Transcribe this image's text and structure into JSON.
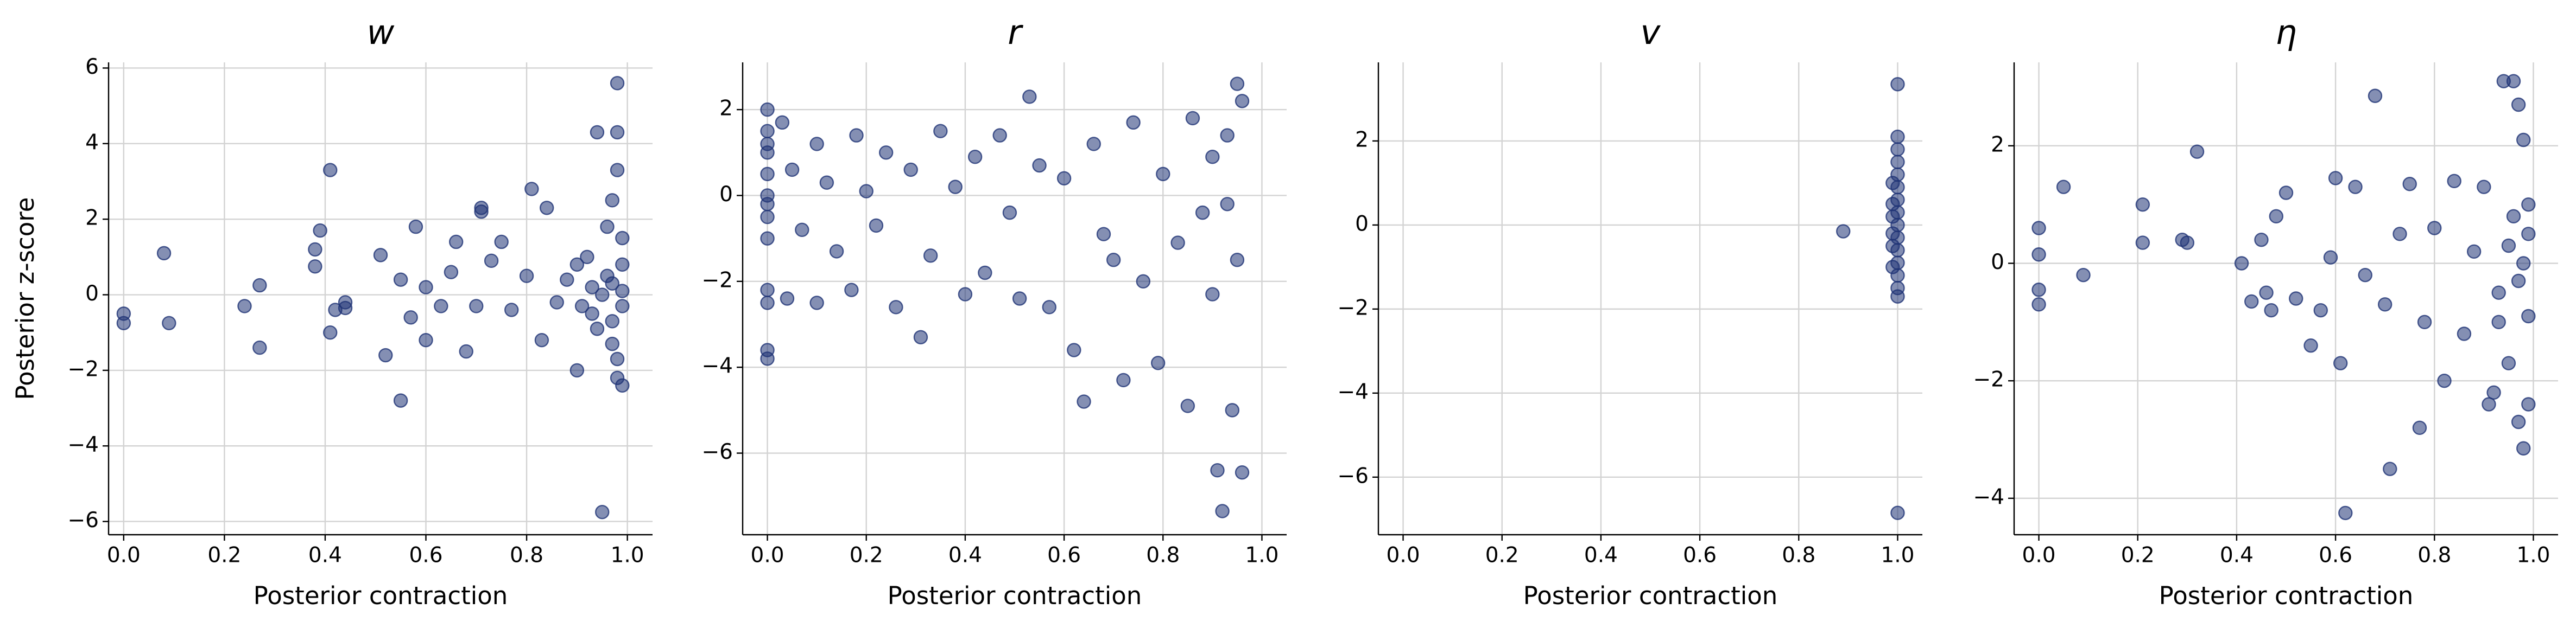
{
  "chart_data": [
    {
      "type": "scatter",
      "title": "w",
      "x_label": "Posterior contraction",
      "y_label": "Posterior z-score",
      "color": "#1f3375",
      "grid": true,
      "xlim": [
        -0.03,
        1.05
      ],
      "ylim": [
        -6.35,
        6.15
      ],
      "xticks": [
        {
          "value": 0,
          "label": "0.0"
        },
        0.2,
        0.4,
        0.6,
        0.8,
        {
          "value": 1,
          "label": "1.0"
        }
      ],
      "yticks": [
        {
          "value": -6,
          "label": "−6"
        },
        {
          "value": -4,
          "label": "−4"
        },
        {
          "value": -2,
          "label": "−2"
        },
        0,
        2,
        4,
        6
      ],
      "x": [
        0,
        0,
        0.08,
        0.09,
        0.24,
        0.27,
        0.27,
        0.38,
        0.38,
        0.39,
        0.41,
        0.41,
        0.42,
        0.44,
        0.44,
        0.51,
        0.52,
        0.55,
        0.55,
        0.57,
        0.58,
        0.6,
        0.6,
        0.63,
        0.65,
        0.66,
        0.68,
        0.7,
        0.71,
        0.71,
        0.73,
        0.75,
        0.77,
        0.8,
        0.81,
        0.83,
        0.84,
        0.86,
        0.88,
        0.9,
        0.9,
        0.92,
        0.93,
        0.94,
        0.94,
        0.95,
        0.96,
        0.97,
        0.97,
        0.98,
        0.98,
        0.98,
        0.98,
        0.99,
        0.99,
        0.99,
        0.99,
        0.97,
        0.96,
        0.95,
        0.93,
        0.91,
        0.99,
        0.98,
        0.97
      ],
      "values": [
        -0.5,
        -0.75,
        1.1,
        -0.75,
        -0.3,
        0.25,
        -1.4,
        0.75,
        1.2,
        1.7,
        3.3,
        -1.0,
        -0.4,
        -0.2,
        -0.35,
        1.05,
        -1.6,
        -2.8,
        0.4,
        -0.6,
        1.8,
        0.2,
        -1.2,
        -0.3,
        0.6,
        1.4,
        -1.5,
        -0.3,
        2.2,
        2.3,
        0.9,
        1.4,
        -0.4,
        0.5,
        2.8,
        -1.2,
        2.3,
        -0.2,
        0.4,
        -2.0,
        0.8,
        1.0,
        -0.5,
        -0.9,
        4.3,
        -5.75,
        1.8,
        -1.3,
        0.3,
        4.3,
        5.6,
        3.3,
        -2.2,
        -2.4,
        -0.3,
        0.8,
        0.1,
        -0.7,
        0.5,
        0.0,
        0.2,
        -0.3,
        1.5,
        -1.7,
        2.5
      ]
    },
    {
      "type": "scatter",
      "title": "r",
      "x_label": "Posterior contraction",
      "color": "#1f3375",
      "grid": true,
      "xlim": [
        -0.05,
        1.05
      ],
      "ylim": [
        -7.9,
        3.1
      ],
      "xticks": [
        {
          "value": 0,
          "label": "0.0"
        },
        0.2,
        0.4,
        0.6,
        0.8,
        {
          "value": 1,
          "label": "1.0"
        }
      ],
      "yticks": [
        {
          "value": -6,
          "label": "−6"
        },
        {
          "value": -4,
          "label": "−4"
        },
        {
          "value": -2,
          "label": "−2"
        },
        0,
        2
      ],
      "x": [
        0,
        0,
        0,
        0,
        0,
        0,
        0,
        0,
        0,
        0,
        0,
        0,
        0,
        0.03,
        0.04,
        0.05,
        0.07,
        0.1,
        0.1,
        0.12,
        0.14,
        0.17,
        0.18,
        0.2,
        0.22,
        0.24,
        0.26,
        0.29,
        0.31,
        0.33,
        0.35,
        0.38,
        0.4,
        0.42,
        0.44,
        0.47,
        0.49,
        0.51,
        0.53,
        0.55,
        0.57,
        0.6,
        0.62,
        0.64,
        0.66,
        0.68,
        0.7,
        0.72,
        0.74,
        0.76,
        0.79,
        0.8,
        0.83,
        0.85,
        0.86,
        0.88,
        0.9,
        0.91,
        0.92,
        0.93,
        0.94,
        0.95,
        0.95,
        0.96,
        0.96,
        0.93,
        0.9
      ],
      "values": [
        2.0,
        1.5,
        1.0,
        0.5,
        0.0,
        -0.5,
        -1.0,
        -2.2,
        -2.5,
        -3.6,
        -3.8,
        1.2,
        -0.2,
        1.7,
        -2.4,
        0.6,
        -0.8,
        1.2,
        -2.5,
        0.3,
        -1.3,
        -2.2,
        1.4,
        0.1,
        -0.7,
        1.0,
        -2.6,
        0.6,
        -3.3,
        -1.4,
        1.5,
        0.2,
        -2.3,
        0.9,
        -1.8,
        1.4,
        -0.4,
        -2.4,
        2.3,
        0.7,
        -2.6,
        0.4,
        -3.6,
        -4.8,
        1.2,
        -0.9,
        -1.5,
        -4.3,
        1.7,
        -2.0,
        -3.9,
        0.5,
        -1.1,
        -4.9,
        1.8,
        -0.4,
        -2.3,
        -6.4,
        -7.35,
        1.4,
        -5.0,
        2.6,
        -1.5,
        -6.45,
        2.2,
        -0.2,
        0.9
      ]
    },
    {
      "type": "scatter",
      "title": "v",
      "x_label": "Posterior contraction",
      "color": "#1f3375",
      "grid": true,
      "xlim": [
        -0.05,
        1.05
      ],
      "ylim": [
        -7.37,
        3.87
      ],
      "xticks": [
        {
          "value": 0,
          "label": "0.0"
        },
        0.2,
        0.4,
        0.6,
        0.8,
        {
          "value": 1,
          "label": "1.0"
        }
      ],
      "yticks": [
        {
          "value": -6,
          "label": "−6"
        },
        {
          "value": -4,
          "label": "−4"
        },
        {
          "value": -2,
          "label": "−2"
        },
        0,
        2
      ],
      "x": [
        0.89,
        1,
        1,
        1,
        1,
        1,
        1,
        1,
        1,
        1,
        1,
        1,
        1,
        1,
        1,
        1,
        0.99,
        0.99,
        0.99,
        0.99,
        0.99,
        0.99,
        1
      ],
      "values": [
        -0.15,
        3.35,
        2.1,
        1.8,
        1.5,
        1.2,
        0.9,
        0.6,
        0.3,
        0.0,
        -0.3,
        -0.6,
        -0.9,
        -1.2,
        -1.5,
        -1.7,
        0.5,
        -0.5,
        1.0,
        -1.0,
        -0.2,
        0.2,
        -6.85
      ]
    },
    {
      "type": "scatter",
      "title": "η",
      "x_label": "Posterior contraction",
      "color": "#1f3375",
      "grid": true,
      "xlim": [
        -0.05,
        1.05
      ],
      "ylim": [
        -4.62,
        3.42
      ],
      "xticks": [
        {
          "value": 0,
          "label": "0.0"
        },
        0.2,
        0.4,
        0.6,
        0.8,
        {
          "value": 1,
          "label": "1.0"
        }
      ],
      "yticks": [
        {
          "value": -4,
          "label": "−4"
        },
        {
          "value": -2,
          "label": "−2"
        },
        0,
        2
      ],
      "x": [
        0,
        0,
        0,
        0,
        0.05,
        0.09,
        0.21,
        0.21,
        0.29,
        0.3,
        0.32,
        0.41,
        0.43,
        0.45,
        0.46,
        0.47,
        0.48,
        0.5,
        0.52,
        0.55,
        0.57,
        0.59,
        0.6,
        0.61,
        0.62,
        0.64,
        0.66,
        0.68,
        0.7,
        0.71,
        0.73,
        0.75,
        0.77,
        0.78,
        0.8,
        0.82,
        0.84,
        0.86,
        0.88,
        0.9,
        0.91,
        0.92,
        0.93,
        0.94,
        0.95,
        0.96,
        0.97,
        0.97,
        0.98,
        0.98,
        0.99,
        0.99,
        0.99,
        0.99,
        0.98,
        0.97,
        0.96,
        0.95,
        0.93
      ],
      "values": [
        0.6,
        0.15,
        -0.45,
        -0.7,
        1.3,
        -0.2,
        1.0,
        0.35,
        0.4,
        0.35,
        1.9,
        0.0,
        -0.65,
        0.4,
        -0.5,
        -0.8,
        0.8,
        1.2,
        -0.6,
        -1.4,
        -0.8,
        0.1,
        1.45,
        -1.7,
        -4.25,
        1.3,
        -0.2,
        2.85,
        -0.7,
        -3.5,
        0.5,
        1.35,
        -2.8,
        -1.0,
        0.6,
        -2.0,
        1.4,
        -1.2,
        0.2,
        1.3,
        -2.4,
        -2.2,
        -0.5,
        3.1,
        -1.7,
        3.1,
        2.7,
        -2.7,
        -3.15,
        2.1,
        0.5,
        -0.9,
        1.0,
        -2.4,
        0.0,
        -0.3,
        0.8,
        0.3,
        -1.0
      ]
    }
  ]
}
